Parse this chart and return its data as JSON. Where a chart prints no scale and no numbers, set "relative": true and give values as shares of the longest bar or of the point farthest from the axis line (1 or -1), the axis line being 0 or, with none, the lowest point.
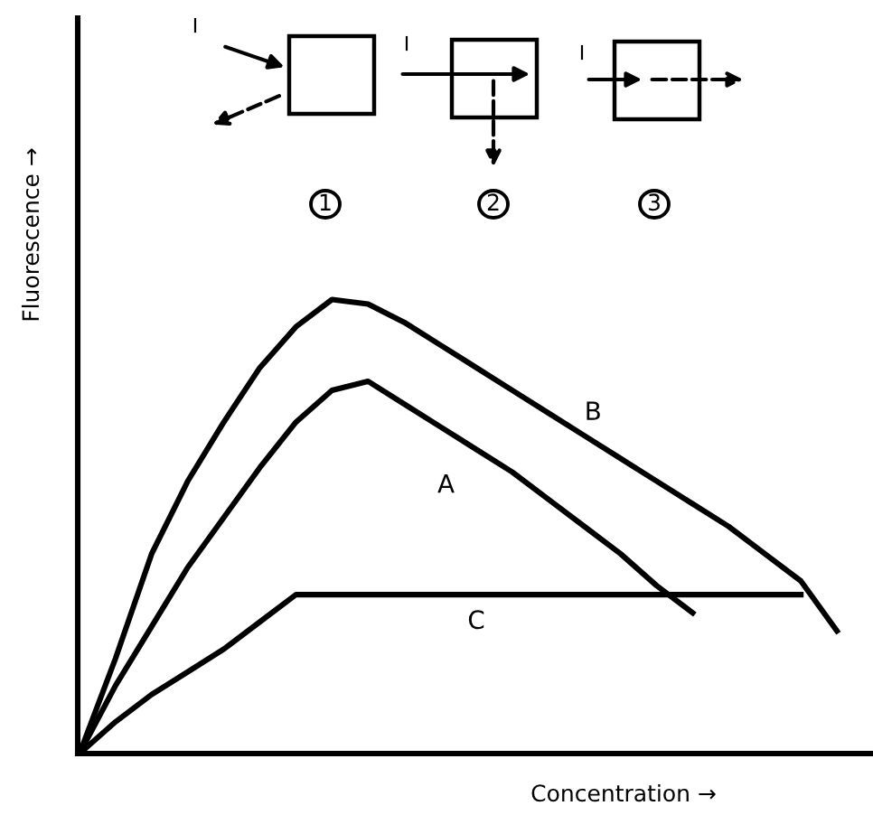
{
  "chart_data": {
    "type": "line",
    "relative": true,
    "xlabel": "Concentration →",
    "ylabel": "Fluorescence →",
    "categories": [
      null,
      null,
      null,
      null,
      null,
      null,
      null,
      null,
      null,
      null,
      null,
      null,
      null,
      null,
      null,
      null,
      null,
      null,
      null,
      null,
      null,
      null
    ],
    "series": [
      {
        "name": "A",
        "color": "#000000",
        "values": [
          0,
          0.15,
          0.28,
          0.41,
          0.52,
          0.63,
          0.73,
          0.8,
          0.82,
          0.77,
          0.72,
          0.67,
          0.62,
          0.56,
          0.5,
          0.44,
          0.37,
          0.31,
          null,
          null,
          null,
          null
        ]
      },
      {
        "name": "B",
        "color": "#000000",
        "values": [
          0,
          0.21,
          0.44,
          0.6,
          0.73,
          0.85,
          0.94,
          1,
          0.99,
          0.95,
          0.9,
          0.85,
          0.8,
          0.75,
          0.7,
          0.65,
          0.6,
          0.55,
          0.5,
          0.44,
          0.38,
          0.27
        ]
      },
      {
        "name": "C",
        "color": "#000000",
        "values": [
          0,
          0.07,
          0.13,
          0.18,
          0.23,
          0.29,
          0.35,
          0.35,
          0.35,
          0.35,
          0.35,
          0.35,
          0.35,
          0.35,
          0.35,
          0.35,
          0.35,
          0.35,
          0.35,
          0.35,
          0.35,
          null
        ]
      }
    ],
    "annotations": [
      "I",
      "I",
      "I",
      "1",
      "2",
      "3"
    ],
    "legend": false,
    "marker": "none",
    "line_style": "solid"
  }
}
